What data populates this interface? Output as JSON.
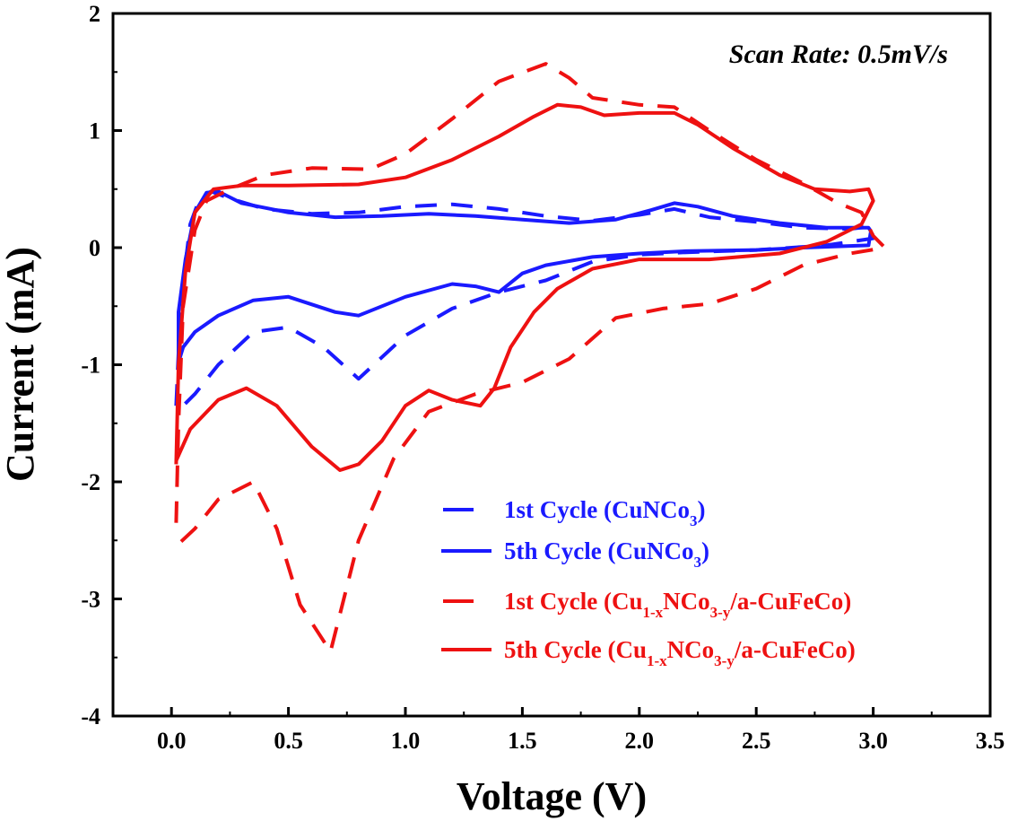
{
  "chart_data": {
    "type": "line",
    "title": "",
    "xlabel": "Voltage (V)",
    "ylabel": "Current (mA)",
    "xlim": [
      -0.25,
      3.5
    ],
    "ylim": [
      -4,
      2
    ],
    "x_ticks": [
      "0.0",
      "0.5",
      "1.0",
      "1.5",
      "2.0",
      "2.5",
      "3.0",
      "3.5"
    ],
    "y_ticks": [
      "-4",
      "-3",
      "-2",
      "-1",
      "0",
      "1",
      "2"
    ],
    "grid": false,
    "legend_position": "bottom-right",
    "annotation": "Scan Rate: 0.5mV/s",
    "series": [
      {
        "name": "1st Cycle (CuNCo3)",
        "legend": {
          "pre": "1st Cycle (CuNCo",
          "sub1": "3",
          "mid": ")",
          "sub2": "",
          "post": ""
        },
        "color": "#1a1aff",
        "style": "dashed",
        "points": [
          [
            0.02,
            -1.35
          ],
          [
            0.03,
            -0.9
          ],
          [
            0.05,
            -0.3
          ],
          [
            0.08,
            0.2
          ],
          [
            0.12,
            0.42
          ],
          [
            0.17,
            0.48
          ],
          [
            0.25,
            0.42
          ],
          [
            0.4,
            0.33
          ],
          [
            0.6,
            0.29
          ],
          [
            0.8,
            0.3
          ],
          [
            1.0,
            0.35
          ],
          [
            1.2,
            0.37
          ],
          [
            1.4,
            0.33
          ],
          [
            1.6,
            0.27
          ],
          [
            1.8,
            0.23
          ],
          [
            2.0,
            0.28
          ],
          [
            2.15,
            0.33
          ],
          [
            2.3,
            0.26
          ],
          [
            2.5,
            0.22
          ],
          [
            2.7,
            0.17
          ],
          [
            2.9,
            0.16
          ],
          [
            2.99,
            0.18
          ],
          [
            3.0,
            0.08
          ],
          [
            2.8,
            0.02
          ],
          [
            2.5,
            -0.02
          ],
          [
            2.2,
            -0.04
          ],
          [
            2.0,
            -0.06
          ],
          [
            1.8,
            -0.12
          ],
          [
            1.6,
            -0.28
          ],
          [
            1.4,
            -0.38
          ],
          [
            1.2,
            -0.52
          ],
          [
            1.0,
            -0.75
          ],
          [
            0.8,
            -1.12
          ],
          [
            0.65,
            -0.85
          ],
          [
            0.5,
            -0.68
          ],
          [
            0.35,
            -0.72
          ],
          [
            0.2,
            -1.0
          ],
          [
            0.1,
            -1.25
          ],
          [
            0.05,
            -1.35
          ]
        ]
      },
      {
        "name": "5th Cycle (CuNCo3)",
        "legend": {
          "pre": "5th Cycle (CuNCo",
          "sub1": "3",
          "mid": ")",
          "sub2": "",
          "post": ""
        },
        "color": "#1a1aff",
        "style": "solid",
        "points": [
          [
            0.03,
            -0.98
          ],
          [
            0.03,
            -0.55
          ],
          [
            0.06,
            -0.1
          ],
          [
            0.1,
            0.3
          ],
          [
            0.15,
            0.47
          ],
          [
            0.2,
            0.48
          ],
          [
            0.3,
            0.38
          ],
          [
            0.5,
            0.3
          ],
          [
            0.7,
            0.26
          ],
          [
            0.9,
            0.27
          ],
          [
            1.1,
            0.29
          ],
          [
            1.3,
            0.27
          ],
          [
            1.5,
            0.24
          ],
          [
            1.7,
            0.21
          ],
          [
            1.9,
            0.24
          ],
          [
            2.05,
            0.32
          ],
          [
            2.15,
            0.38
          ],
          [
            2.25,
            0.35
          ],
          [
            2.4,
            0.27
          ],
          [
            2.6,
            0.21
          ],
          [
            2.8,
            0.17
          ],
          [
            2.98,
            0.17
          ],
          [
            2.99,
            0.14
          ],
          [
            2.98,
            0.02
          ],
          [
            2.7,
            0.0
          ],
          [
            2.5,
            -0.02
          ],
          [
            2.2,
            -0.03
          ],
          [
            2.0,
            -0.05
          ],
          [
            1.8,
            -0.08
          ],
          [
            1.6,
            -0.15
          ],
          [
            1.5,
            -0.22
          ],
          [
            1.4,
            -0.38
          ],
          [
            1.3,
            -0.33
          ],
          [
            1.2,
            -0.31
          ],
          [
            1.0,
            -0.42
          ],
          [
            0.8,
            -0.58
          ],
          [
            0.7,
            -0.55
          ],
          [
            0.5,
            -0.42
          ],
          [
            0.35,
            -0.45
          ],
          [
            0.2,
            -0.58
          ],
          [
            0.1,
            -0.72
          ],
          [
            0.05,
            -0.85
          ],
          [
            0.03,
            -0.98
          ]
        ]
      },
      {
        "name": "1st Cycle (Cu1-xNCo3-y/a-CuFeCo)",
        "legend": {
          "pre": "1st Cycle (Cu",
          "sub1": "1-x",
          "mid": "NCo",
          "sub2": "3-y",
          "post": "/a-CuFeCo)"
        },
        "color": "#ee1111",
        "style": "dashed",
        "points": [
          [
            0.02,
            -2.35
          ],
          [
            0.03,
            -1.5
          ],
          [
            0.05,
            -0.5
          ],
          [
            0.1,
            0.15
          ],
          [
            0.15,
            0.4
          ],
          [
            0.25,
            0.5
          ],
          [
            0.4,
            0.62
          ],
          [
            0.6,
            0.68
          ],
          [
            0.85,
            0.67
          ],
          [
            1.0,
            0.8
          ],
          [
            1.2,
            1.1
          ],
          [
            1.4,
            1.42
          ],
          [
            1.6,
            1.57
          ],
          [
            1.7,
            1.45
          ],
          [
            1.8,
            1.28
          ],
          [
            2.0,
            1.22
          ],
          [
            2.15,
            1.2
          ],
          [
            2.3,
            1.0
          ],
          [
            2.5,
            0.75
          ],
          [
            2.7,
            0.55
          ],
          [
            2.85,
            0.38
          ],
          [
            2.95,
            0.3
          ],
          [
            3.0,
            0.1
          ],
          [
            3.05,
            0.0
          ],
          [
            2.9,
            -0.05
          ],
          [
            2.7,
            -0.15
          ],
          [
            2.5,
            -0.35
          ],
          [
            2.3,
            -0.48
          ],
          [
            2.1,
            -0.52
          ],
          [
            1.9,
            -0.6
          ],
          [
            1.7,
            -0.95
          ],
          [
            1.5,
            -1.15
          ],
          [
            1.3,
            -1.25
          ],
          [
            1.1,
            -1.4
          ],
          [
            0.95,
            -1.8
          ],
          [
            0.8,
            -2.5
          ],
          [
            0.68,
            -3.45
          ],
          [
            0.55,
            -3.05
          ],
          [
            0.45,
            -2.4
          ],
          [
            0.35,
            -2.0
          ],
          [
            0.2,
            -2.15
          ],
          [
            0.1,
            -2.4
          ],
          [
            0.02,
            -2.55
          ]
        ]
      },
      {
        "name": "5th Cycle (Cu1-xNCo3-y/a-CuFeCo)",
        "legend": {
          "pre": "5th Cycle (Cu",
          "sub1": "1-x",
          "mid": "NCo",
          "sub2": "3-y",
          "post": "/a-CuFeCo)"
        },
        "color": "#ee1111",
        "style": "solid",
        "points": [
          [
            0.02,
            -1.85
          ],
          [
            0.03,
            -1.0
          ],
          [
            0.06,
            -0.2
          ],
          [
            0.1,
            0.3
          ],
          [
            0.18,
            0.5
          ],
          [
            0.3,
            0.53
          ],
          [
            0.5,
            0.53
          ],
          [
            0.8,
            0.54
          ],
          [
            1.0,
            0.6
          ],
          [
            1.2,
            0.75
          ],
          [
            1.4,
            0.95
          ],
          [
            1.55,
            1.12
          ],
          [
            1.65,
            1.22
          ],
          [
            1.75,
            1.2
          ],
          [
            1.85,
            1.13
          ],
          [
            2.0,
            1.15
          ],
          [
            2.15,
            1.15
          ],
          [
            2.25,
            1.05
          ],
          [
            2.4,
            0.85
          ],
          [
            2.6,
            0.62
          ],
          [
            2.75,
            0.5
          ],
          [
            2.9,
            0.48
          ],
          [
            2.98,
            0.5
          ],
          [
            3.0,
            0.4
          ],
          [
            2.95,
            0.2
          ],
          [
            2.8,
            0.05
          ],
          [
            2.6,
            -0.05
          ],
          [
            2.3,
            -0.1
          ],
          [
            2.0,
            -0.1
          ],
          [
            1.8,
            -0.18
          ],
          [
            1.65,
            -0.35
          ],
          [
            1.55,
            -0.55
          ],
          [
            1.45,
            -0.85
          ],
          [
            1.38,
            -1.2
          ],
          [
            1.32,
            -1.35
          ],
          [
            1.2,
            -1.3
          ],
          [
            1.1,
            -1.22
          ],
          [
            1.0,
            -1.35
          ],
          [
            0.9,
            -1.65
          ],
          [
            0.8,
            -1.85
          ],
          [
            0.72,
            -1.9
          ],
          [
            0.6,
            -1.7
          ],
          [
            0.45,
            -1.35
          ],
          [
            0.32,
            -1.2
          ],
          [
            0.2,
            -1.3
          ],
          [
            0.08,
            -1.55
          ],
          [
            0.02,
            -1.82
          ]
        ]
      }
    ]
  }
}
